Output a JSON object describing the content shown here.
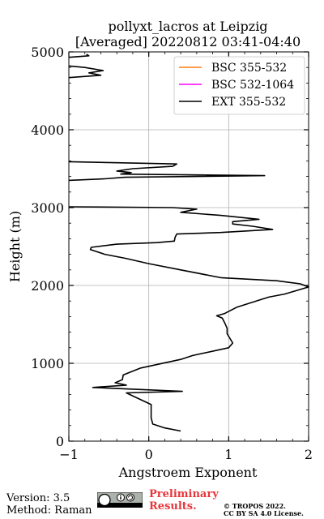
{
  "chart_data": {
    "type": "line",
    "title": "pollyxt_lacros at Leipzig",
    "subtitle": "[Averaged] 20220812 03:41-04:40",
    "xlabel": "Angstroem Exponent",
    "ylabel": "Height (m)",
    "xlim": [
      -1,
      2
    ],
    "ylim": [
      0,
      5000
    ],
    "xticks": [
      -1,
      0,
      1,
      2
    ],
    "xtick_labels": [
      "−1",
      "0",
      "1",
      "2"
    ],
    "yticks": [
      0,
      1000,
      2000,
      3000,
      4000,
      5000
    ],
    "ytick_labels": [
      "0",
      "1000",
      "2000",
      "3000",
      "4000",
      "5000"
    ],
    "grid": true,
    "legend_position": "top-right",
    "series": [
      {
        "name": "BSC 355-532",
        "color": "#ff7f0e",
        "points": []
      },
      {
        "name": "BSC 532-1064",
        "color": "#ff00ff",
        "points": []
      },
      {
        "name": "EXT 355-532",
        "color": "#000000",
        "points": [
          [
            0.4,
            130
          ],
          [
            0.2,
            170
          ],
          [
            0.05,
            220
          ],
          [
            0.03,
            300
          ],
          [
            0.03,
            470
          ],
          [
            -0.28,
            620
          ],
          [
            0.42,
            640
          ],
          [
            -0.7,
            690
          ],
          [
            -0.28,
            720
          ],
          [
            -0.42,
            750
          ],
          [
            -0.33,
            790
          ],
          [
            -0.32,
            850
          ],
          [
            -0.1,
            940
          ],
          [
            0.4,
            1050
          ],
          [
            0.55,
            1100
          ],
          [
            1.0,
            1200
          ],
          [
            1.05,
            1260
          ],
          [
            0.98,
            1380
          ],
          [
            0.98,
            1450
          ],
          [
            0.95,
            1520
          ],
          [
            0.92,
            1580
          ],
          [
            0.85,
            1610
          ],
          [
            0.95,
            1640
          ],
          [
            1.1,
            1720
          ],
          [
            1.5,
            1850
          ],
          [
            1.7,
            1890
          ],
          [
            2.0,
            1980
          ],
          [
            1.9,
            2020
          ],
          [
            1.6,
            2060
          ],
          [
            0.9,
            2100
          ],
          [
            0.4,
            2200
          ],
          [
            0.0,
            2280
          ],
          [
            -0.3,
            2350
          ],
          [
            -0.55,
            2400
          ],
          [
            -0.73,
            2460
          ],
          [
            -0.72,
            2490
          ],
          [
            -0.4,
            2530
          ],
          [
            0.1,
            2550
          ],
          [
            0.32,
            2570
          ],
          [
            0.33,
            2620
          ],
          [
            0.35,
            2660
          ],
          [
            0.9,
            2680
          ],
          [
            1.55,
            2720
          ],
          [
            1.3,
            2760
          ],
          [
            1.05,
            2790
          ],
          [
            1.05,
            2820
          ],
          [
            1.38,
            2850
          ],
          [
            0.9,
            2900
          ],
          [
            0.4,
            2940
          ],
          [
            0.6,
            2980
          ],
          [
            0.3,
            3000
          ],
          [
            -1.0,
            3010
          ]
        ]
      },
      {
        "name": "",
        "color": "#000000",
        "points": [
          [
            -1.0,
            3350
          ],
          [
            -0.55,
            3370
          ],
          [
            -0.3,
            3390
          ],
          [
            1.45,
            3410
          ],
          [
            -0.35,
            3430
          ],
          [
            -0.22,
            3450
          ],
          [
            -0.4,
            3470
          ],
          [
            -0.2,
            3500
          ],
          [
            0.3,
            3530
          ],
          [
            0.35,
            3560
          ],
          [
            -1.0,
            3590
          ]
        ]
      },
      {
        "name": "",
        "color": "#000000",
        "points": [
          [
            -1.0,
            4670
          ],
          [
            -0.6,
            4700
          ],
          [
            -0.75,
            4730
          ],
          [
            -0.57,
            4760
          ],
          [
            -0.8,
            4800
          ],
          [
            -1.0,
            4820
          ]
        ]
      },
      {
        "name": "",
        "color": "#000000",
        "points": [
          [
            -1.0,
            4930
          ],
          [
            -0.75,
            4950
          ],
          [
            -0.78,
            4970
          ]
        ]
      }
    ]
  },
  "footer": {
    "version": "Version: 3.5",
    "method": "Method: Raman",
    "preliminary_line1": "Preliminary",
    "preliminary_line2": "Results.",
    "copyright_line1": "© TROPOS 2022.",
    "copyright_line2": "CC BY SA 4.0 License."
  }
}
